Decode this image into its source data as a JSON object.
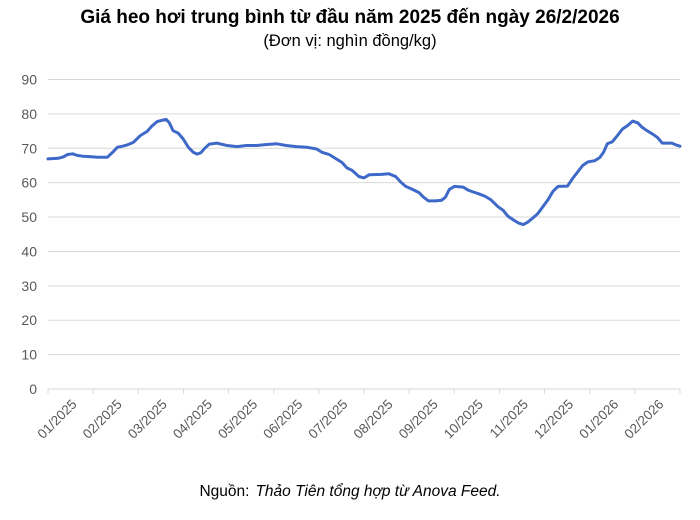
{
  "header": {
    "title": "Giá heo hơi trung bình từ đầu năm 2025 đến ngày 26/2/2026",
    "subtitle": "(Đơn vị: nghìn đồng/kg)"
  },
  "footer": {
    "source_label": "Nguồn:",
    "source_text": "Thảo Tiên tổng hợp từ Anova Feed."
  },
  "colors": {
    "line": "#3E69C8",
    "grid": "#D9D9D9",
    "axis_label": "#595959",
    "background": "#FFFFFF"
  },
  "chart_data": {
    "type": "line",
    "title": "Giá heo hơi trung bình từ đầu năm 2025 đến ngày 26/2/2026",
    "unit_label": "(Đơn vị: nghìn đồng/kg)",
    "xlabel": "",
    "ylabel": "",
    "ylim": [
      0,
      90
    ],
    "y_ticks": [
      0,
      10,
      20,
      30,
      40,
      50,
      60,
      70,
      80,
      90
    ],
    "x_labels": [
      "01/2025",
      "02/2025",
      "03/2025",
      "04/2025",
      "05/2025",
      "06/2025",
      "07/2025",
      "08/2025",
      "09/2025",
      "10/2025",
      "11/2025",
      "12/2025",
      "01/2026",
      "02/2026"
    ],
    "grid": "horizontal",
    "legend": "none",
    "series": [
      {
        "color": "#3E69C8",
        "points": [
          [
            0.0,
            66.9
          ],
          [
            0.016,
            67.1
          ],
          [
            0.024,
            67.5
          ],
          [
            0.031,
            68.2
          ],
          [
            0.039,
            68.4
          ],
          [
            0.047,
            67.9
          ],
          [
            0.055,
            67.7
          ],
          [
            0.063,
            67.6
          ],
          [
            0.071,
            67.5
          ],
          [
            0.079,
            67.4
          ],
          [
            0.094,
            67.4
          ],
          [
            0.102,
            68.8
          ],
          [
            0.11,
            70.3
          ],
          [
            0.118,
            70.6
          ],
          [
            0.126,
            71.0
          ],
          [
            0.135,
            71.7
          ],
          [
            0.146,
            73.7
          ],
          [
            0.157,
            74.9
          ],
          [
            0.164,
            76.4
          ],
          [
            0.173,
            77.8
          ],
          [
            0.182,
            78.2
          ],
          [
            0.187,
            78.4
          ],
          [
            0.192,
            77.4
          ],
          [
            0.198,
            75.1
          ],
          [
            0.206,
            74.4
          ],
          [
            0.214,
            72.7
          ],
          [
            0.222,
            70.3
          ],
          [
            0.23,
            68.8
          ],
          [
            0.236,
            68.3
          ],
          [
            0.242,
            68.7
          ],
          [
            0.248,
            70.0
          ],
          [
            0.255,
            71.2
          ],
          [
            0.267,
            71.5
          ],
          [
            0.283,
            70.8
          ],
          [
            0.299,
            70.5
          ],
          [
            0.314,
            70.8
          ],
          [
            0.33,
            70.8
          ],
          [
            0.346,
            71.1
          ],
          [
            0.362,
            71.3
          ],
          [
            0.377,
            70.8
          ],
          [
            0.393,
            70.5
          ],
          [
            0.409,
            70.3
          ],
          [
            0.425,
            69.8
          ],
          [
            0.434,
            68.8
          ],
          [
            0.445,
            68.2
          ],
          [
            0.456,
            66.9
          ],
          [
            0.465,
            65.9
          ],
          [
            0.473,
            64.3
          ],
          [
            0.481,
            63.6
          ],
          [
            0.492,
            61.8
          ],
          [
            0.5,
            61.4
          ],
          [
            0.508,
            62.3
          ],
          [
            0.528,
            62.4
          ],
          [
            0.539,
            62.6
          ],
          [
            0.55,
            61.8
          ],
          [
            0.558,
            60.2
          ],
          [
            0.566,
            58.9
          ],
          [
            0.575,
            58.2
          ],
          [
            0.587,
            57.1
          ],
          [
            0.594,
            55.8
          ],
          [
            0.602,
            54.7
          ],
          [
            0.613,
            54.7
          ],
          [
            0.623,
            54.9
          ],
          [
            0.629,
            55.8
          ],
          [
            0.635,
            58.0
          ],
          [
            0.643,
            58.9
          ],
          [
            0.657,
            58.7
          ],
          [
            0.665,
            57.8
          ],
          [
            0.673,
            57.3
          ],
          [
            0.681,
            56.8
          ],
          [
            0.692,
            56.0
          ],
          [
            0.701,
            55.0
          ],
          [
            0.712,
            53.0
          ],
          [
            0.72,
            52.0
          ],
          [
            0.728,
            50.2
          ],
          [
            0.736,
            49.2
          ],
          [
            0.744,
            48.3
          ],
          [
            0.752,
            47.8
          ],
          [
            0.759,
            48.5
          ],
          [
            0.767,
            49.7
          ],
          [
            0.775,
            51.0
          ],
          [
            0.783,
            53.0
          ],
          [
            0.791,
            55.0
          ],
          [
            0.799,
            57.5
          ],
          [
            0.807,
            58.9
          ],
          [
            0.822,
            59.0
          ],
          [
            0.83,
            61.2
          ],
          [
            0.838,
            63.1
          ],
          [
            0.846,
            65.0
          ],
          [
            0.854,
            66.0
          ],
          [
            0.865,
            66.4
          ],
          [
            0.873,
            67.3
          ],
          [
            0.879,
            68.8
          ],
          [
            0.885,
            71.3
          ],
          [
            0.893,
            71.9
          ],
          [
            0.901,
            73.7
          ],
          [
            0.909,
            75.6
          ],
          [
            0.917,
            76.6
          ],
          [
            0.925,
            77.9
          ],
          [
            0.933,
            77.4
          ],
          [
            0.94,
            76.1
          ],
          [
            0.948,
            75.1
          ],
          [
            0.956,
            74.2
          ],
          [
            0.964,
            73.2
          ],
          [
            0.972,
            71.5
          ],
          [
            0.987,
            71.5
          ],
          [
            0.995,
            70.9
          ],
          [
            1.0,
            70.6
          ]
        ]
      }
    ]
  }
}
